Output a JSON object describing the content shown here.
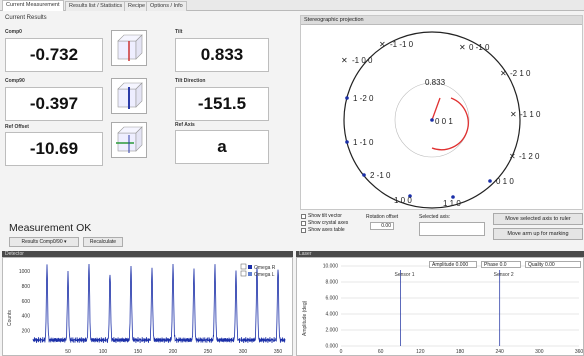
{
  "tabs": [
    {
      "label": "Current Measurement"
    },
    {
      "label": "Results list / Statistics"
    },
    {
      "label": "Recipe"
    },
    {
      "label": "Options / Info"
    }
  ],
  "results": {
    "title": "Current Results",
    "comp0": {
      "label": "Comp0",
      "value": "-0.732"
    },
    "comp90": {
      "label": "Comp90",
      "value": "-0.397"
    },
    "ref_offset": {
      "label": "Ref Offset",
      "value": "-10.69"
    },
    "tilt": {
      "label": "Tilt",
      "value": "0.833"
    },
    "tilt_direction": {
      "label": "Tilt Direction",
      "value": "-151.5"
    },
    "ref_axis": {
      "label": "Ref Axis",
      "value": "a"
    }
  },
  "stereo": {
    "title": "Stereographic projection",
    "tilt_value": "0.833",
    "center_label": "0 0 1",
    "labels": [
      {
        "text": "-1 -1 0"
      },
      {
        "text": "-1 0 0"
      },
      {
        "text": "0 -1 0"
      },
      {
        "text": "-2 1 0"
      },
      {
        "text": "1 -2 0"
      },
      {
        "text": "-1 1 0"
      },
      {
        "text": "1 -1 0"
      },
      {
        "text": "-1 2 0"
      },
      {
        "text": "2 -1 0"
      },
      {
        "text": "0 1 0"
      },
      {
        "text": "1 0 0"
      },
      {
        "text": "1 1 0"
      }
    ]
  },
  "measurement": {
    "status": "Measurement OK",
    "mode": "Results Comp0/90",
    "recalculate": "Recalculate"
  },
  "options": {
    "show_tilt_vector": "Show tilt vector",
    "show_crystal_axes": "Show crystal axes",
    "show_axes_table": "Show axes table",
    "rotation_offset_label": "Rotation offset",
    "rotation_offset_value": "0.00",
    "selected_axis_label": "Selected axis:",
    "move_selected": "Move selected axis to ruler",
    "move_arm": "Move arm up for marking"
  },
  "detector": {
    "title": "Detector",
    "ylabel": "Counts",
    "legend": [
      {
        "name": "Omega R",
        "color": "#1b2fa8"
      },
      {
        "name": "Omega L",
        "color": "#5f7fd0"
      }
    ]
  },
  "laser": {
    "title": "Laser",
    "ylabel": "Amplitude (deg)",
    "amplitude_label": "Amplitude",
    "amplitude_value": "0.000",
    "phase_label": "Phase",
    "phase_value": "0.0",
    "quality_label": "Quality",
    "quality_value": "0.00",
    "marker1": "Sensor 1",
    "marker2": "Sensor 2"
  },
  "chart_data": [
    {
      "type": "line",
      "name": "detector",
      "ylabel": "Counts",
      "x_ticks": [
        "50",
        "100",
        "150",
        "200",
        "250",
        "300",
        "350"
      ],
      "y_ticks": [
        "200",
        "400",
        "600",
        "800",
        "1000"
      ],
      "xlim": [
        0,
        360
      ],
      "ylim": [
        0,
        1100
      ],
      "series": [
        {
          "name": "Omega R",
          "peaks_x": [
            20,
            50,
            80,
            110,
            140,
            170,
            200,
            230,
            260,
            290,
            320,
            350
          ],
          "peak_heights": [
            980,
            920,
            1050,
            900,
            1000,
            960,
            1040,
            950,
            1010,
            930,
            990,
            970
          ],
          "baseline": 80
        }
      ]
    },
    {
      "type": "line",
      "name": "laser",
      "ylabel": "Amplitude (deg)",
      "x_ticks": [
        "0",
        "60",
        "120",
        "180",
        "240",
        "300",
        "360"
      ],
      "y_ticks": [
        "0.000",
        "2.000",
        "4.000",
        "6.000",
        "8.000",
        "10.000"
      ],
      "xlim": [
        0,
        360
      ],
      "ylim": [
        0,
        10
      ],
      "markers_x": [
        90,
        240
      ]
    }
  ]
}
